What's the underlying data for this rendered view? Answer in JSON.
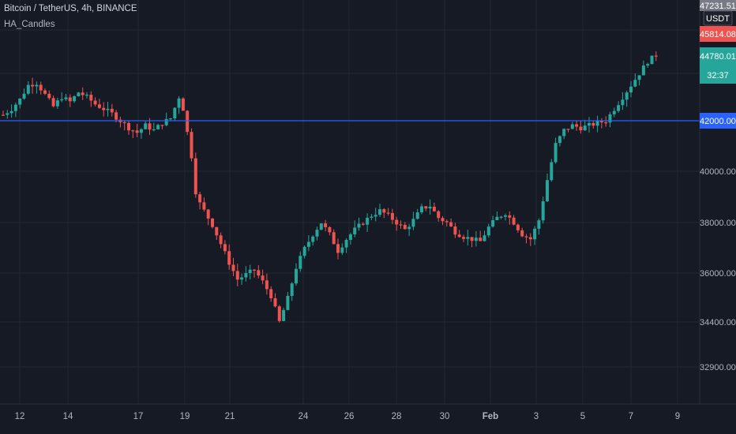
{
  "header": {
    "symbol": "Bitcoin / TetherUS, 4h, BINANCE",
    "indicator": "HA_Candles"
  },
  "price_axis": {
    "currency": "USDT",
    "ticks": [
      "42000.00",
      "40000.00",
      "38000.00",
      "36000.00",
      "34400.00",
      "32900.00"
    ],
    "tags": {
      "top_cut": "47231.51",
      "high": "45814.08",
      "last": "44780.01",
      "countdown": "32:37",
      "hline": "42000.00"
    }
  },
  "time_axis": {
    "labels": [
      "12",
      "14",
      "17",
      "19",
      "21",
      "24",
      "26",
      "28",
      "30",
      "Feb",
      "3",
      "5",
      "7",
      "9"
    ]
  },
  "colors": {
    "background": "#161a25",
    "grid": "#242833",
    "up": "#26a69a",
    "down": "#ef5350",
    "hline": "#2962ff",
    "last_price_tag": "#26a69a",
    "high_tag": "#ef5350",
    "hline_tag": "#2962ff",
    "top_tag": "#787b86"
  },
  "chart_data": {
    "type": "candlestick",
    "symbol": "Bitcoin / TetherUS",
    "interval": "4h",
    "exchange": "BINANCE",
    "indicator": "HA_Candles",
    "horizontal_line": 42000,
    "last_price": 44780.01,
    "x_labels": [
      "12",
      "14",
      "17",
      "19",
      "21",
      "24",
      "26",
      "28",
      "30",
      "Feb",
      "3",
      "5",
      "7",
      "9"
    ],
    "close_path": [
      [
        0,
        42250
      ],
      [
        2,
        42500
      ],
      [
        4,
        42900
      ],
      [
        6,
        43500
      ],
      [
        8,
        43600
      ],
      [
        10,
        43100
      ],
      [
        12,
        42600
      ],
      [
        14,
        43000
      ],
      [
        16,
        42800
      ],
      [
        18,
        43200
      ],
      [
        20,
        43000
      ],
      [
        22,
        42700
      ],
      [
        24,
        42500
      ],
      [
        26,
        42300
      ],
      [
        28,
        42000
      ],
      [
        30,
        41700
      ],
      [
        32,
        41500
      ],
      [
        34,
        41800
      ],
      [
        36,
        41600
      ],
      [
        38,
        41900
      ],
      [
        40,
        42100
      ],
      [
        42,
        43000
      ],
      [
        43,
        42500
      ],
      [
        44,
        41500
      ],
      [
        45,
        40500
      ],
      [
        46,
        39000
      ],
      [
        47,
        38500
      ],
      [
        48,
        38200
      ],
      [
        50,
        37600
      ],
      [
        52,
        36800
      ],
      [
        54,
        36000
      ],
      [
        56,
        35300
      ],
      [
        58,
        35500
      ],
      [
        60,
        35700
      ],
      [
        62,
        35200
      ],
      [
        64,
        34600
      ],
      [
        66,
        33500
      ],
      [
        68,
        34500
      ],
      [
        70,
        35800
      ],
      [
        72,
        36600
      ],
      [
        74,
        37200
      ],
      [
        76,
        37700
      ],
      [
        78,
        37200
      ],
      [
        80,
        36500
      ],
      [
        82,
        37000
      ],
      [
        84,
        37400
      ],
      [
        86,
        37700
      ],
      [
        88,
        38000
      ],
      [
        90,
        38200
      ],
      [
        92,
        38000
      ],
      [
        94,
        37700
      ],
      [
        96,
        37400
      ],
      [
        98,
        37800
      ],
      [
        100,
        38300
      ],
      [
        102,
        38400
      ],
      [
        104,
        37900
      ],
      [
        106,
        37700
      ],
      [
        108,
        37300
      ],
      [
        110,
        37100
      ],
      [
        112,
        37000
      ],
      [
        114,
        36900
      ],
      [
        116,
        37500
      ],
      [
        118,
        37900
      ],
      [
        120,
        38100
      ],
      [
        122,
        37700
      ],
      [
        124,
        37200
      ],
      [
        126,
        37000
      ],
      [
        128,
        37800
      ],
      [
        130,
        39500
      ],
      [
        132,
        41000
      ],
      [
        134,
        41600
      ],
      [
        136,
        41800
      ],
      [
        138,
        41700
      ],
      [
        140,
        41800
      ],
      [
        142,
        41900
      ],
      [
        144,
        42000
      ],
      [
        146,
        42500
      ],
      [
        148,
        43000
      ],
      [
        150,
        43500
      ],
      [
        152,
        44000
      ],
      [
        154,
        44500
      ],
      [
        156,
        44780
      ]
    ]
  }
}
